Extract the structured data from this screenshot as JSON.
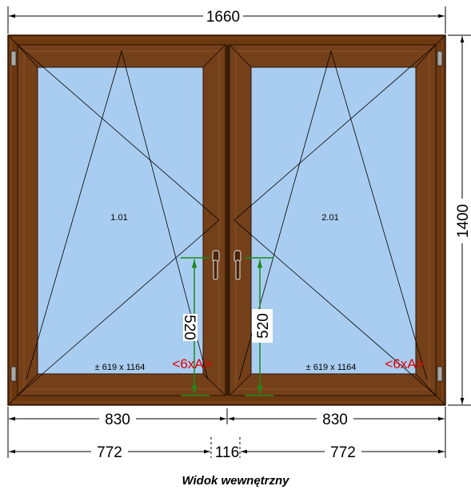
{
  "dimensions": {
    "overall_width": "1660",
    "overall_height": "1400",
    "sash_widths": [
      "830",
      "830"
    ],
    "glass_widths": [
      "772",
      "772"
    ],
    "mullion_width": "116",
    "handle_height": "520"
  },
  "sashes": [
    {
      "id": "1.01",
      "glass_size": "± 619 x 1164",
      "marker": "<6xA>"
    },
    {
      "id": "2.01",
      "glass_size": "± 619 x 1164",
      "marker": "<6xA>"
    }
  ],
  "caption": "Widok wewnętrzny",
  "colors": {
    "frame": "#6b3810",
    "frame_dark": "#3b1c06",
    "glass": "#a9cdf0",
    "dimension_green": "#1a8a1a",
    "marker_red": "#e00000"
  }
}
